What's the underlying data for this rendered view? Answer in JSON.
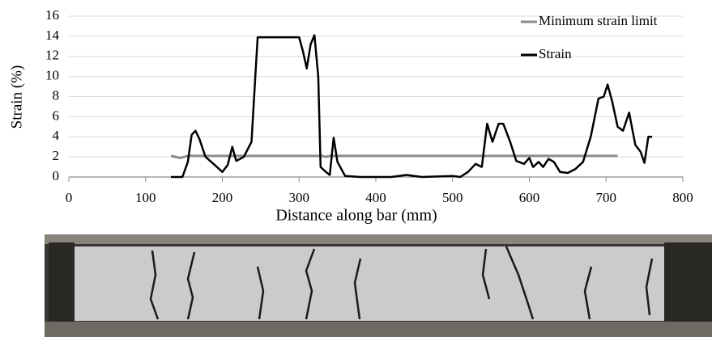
{
  "chart_data": {
    "type": "line",
    "xlabel": "Distance along bar (mm)",
    "ylabel": "Strain (%)",
    "xlim": [
      0,
      800
    ],
    "xticks": [
      0,
      100,
      200,
      300,
      400,
      500,
      600,
      700,
      800
    ],
    "ylim": [
      0,
      16
    ],
    "yticks": [
      0,
      2,
      4,
      6,
      8,
      10,
      12,
      14,
      16
    ],
    "grid": true,
    "legend": "upper right",
    "series": [
      {
        "name": "Minimum strain limit",
        "color": "#8c8c8c",
        "x": [
          133,
          145,
          155,
          330,
          335,
          340,
          715
        ],
        "values": [
          2.1,
          1.9,
          2.1,
          2.1,
          2.0,
          2.1,
          2.1
        ]
      },
      {
        "name": "Strain",
        "color": "#000000",
        "x": [
          133,
          148,
          155,
          160,
          165,
          170,
          178,
          190,
          200,
          207,
          213,
          218,
          228,
          238,
          243,
          246,
          260,
          280,
          300,
          305,
          310,
          315,
          320,
          325,
          328,
          335,
          340,
          345,
          350,
          360,
          380,
          420,
          440,
          460,
          500,
          510,
          520,
          530,
          538,
          545,
          552,
          560,
          566,
          575,
          583,
          593,
          600,
          605,
          612,
          618,
          625,
          632,
          640,
          650,
          660,
          670,
          680,
          690,
          697,
          702,
          708,
          715,
          722,
          730,
          738,
          745,
          750,
          755,
          760
        ],
        "values": [
          0,
          0,
          1.5,
          4.2,
          4.6,
          3.8,
          2.0,
          1.2,
          0.5,
          1.2,
          3.0,
          1.6,
          2.0,
          3.5,
          10,
          13.9,
          13.9,
          13.9,
          13.9,
          12.5,
          10.8,
          13.2,
          14.1,
          10,
          1,
          0.5,
          0.2,
          3.9,
          1.5,
          0.1,
          0,
          0,
          0.2,
          0,
          0.1,
          0,
          0.5,
          1.3,
          1.0,
          5.3,
          3.5,
          5.3,
          5.3,
          3.5,
          1.6,
          1.3,
          1.9,
          1.0,
          1.5,
          1.0,
          1.8,
          1.5,
          0.5,
          0.4,
          0.8,
          1.5,
          4.0,
          7.8,
          8.0,
          9.2,
          7.5,
          5.0,
          4.6,
          6.4,
          3.2,
          2.5,
          1.4,
          4.0,
          4.0
        ]
      }
    ]
  }
}
